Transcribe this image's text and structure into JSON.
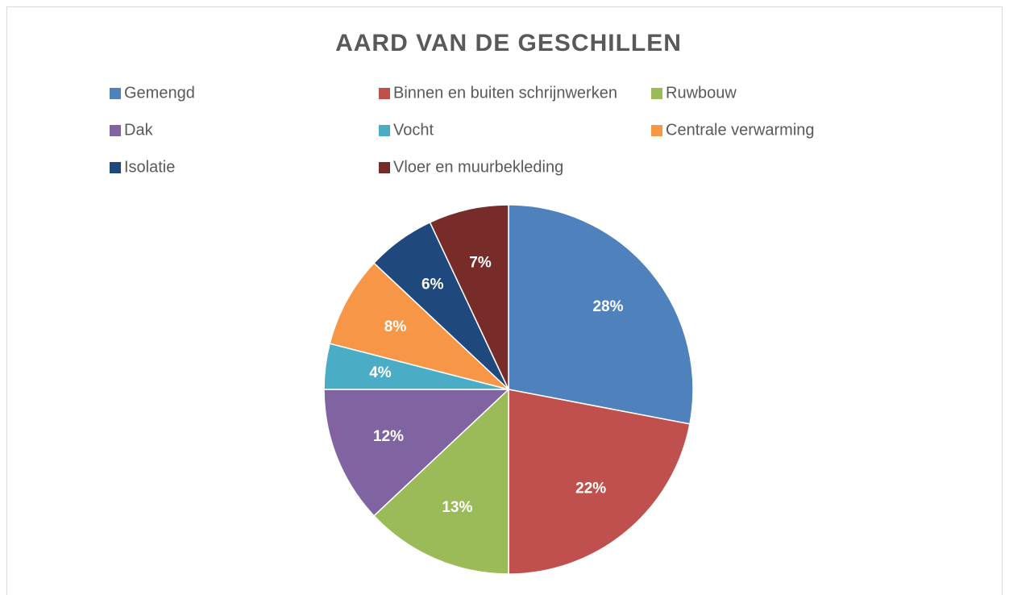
{
  "chart_data": {
    "type": "pie",
    "title": "AARD VAN DE GESCHILLEN",
    "categories": [
      "Gemengd",
      "Binnen en buiten schrijnwerken",
      "Ruwbouw",
      "Dak",
      "Vocht",
      "Centrale verwarming",
      "Isolatie",
      "Vloer en muurbekleding"
    ],
    "values": [
      28,
      22,
      13,
      12,
      4,
      8,
      6,
      7
    ],
    "value_labels": [
      "28%",
      "22%",
      "13%",
      "12%",
      "4%",
      "8%",
      "6%",
      "7%"
    ],
    "colors": [
      "#4f81bd",
      "#c0504d",
      "#9bbb59",
      "#8064a2",
      "#4bacc6",
      "#f79646",
      "#1f497d",
      "#772c2a"
    ],
    "legend": "top"
  }
}
